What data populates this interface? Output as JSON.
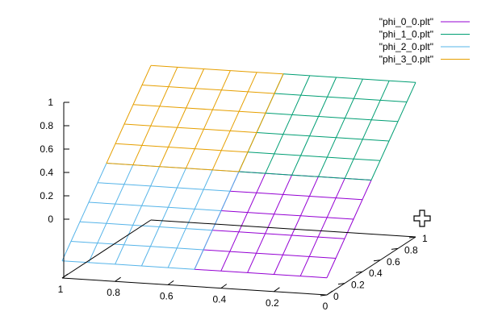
{
  "chart_data": {
    "type": "surface",
    "series": [
      {
        "name": "\"phi_0_0.plt\"",
        "color": "#9400d3",
        "x_range": [
          0,
          0.5
        ],
        "y_range": [
          0,
          0.5
        ],
        "grid": 5
      },
      {
        "name": "\"phi_1_0.plt\"",
        "color": "#009e73",
        "x_range": [
          0,
          0.5
        ],
        "y_range": [
          0.5,
          1
        ],
        "grid": 5
      },
      {
        "name": "\"phi_2_0.plt\"",
        "color": "#56b4e9",
        "x_range": [
          0.5,
          1
        ],
        "y_range": [
          0,
          0.5
        ],
        "grid": 5
      },
      {
        "name": "\"phi_3_0.plt\"",
        "color": "#e69f00",
        "x_range": [
          0.5,
          1
        ],
        "y_range": [
          0.5,
          1
        ],
        "grid": 5
      }
    ],
    "surface_z_corners": {
      "x0y0": 0.1,
      "x1y0": 0.1,
      "x0y1": 0.9,
      "x1y1": 0.9
    },
    "x_ticks": [
      "1",
      "0.8",
      "0.6",
      "0.4",
      "0.2",
      "0"
    ],
    "y_ticks": [
      "0",
      "0.2",
      "0.4",
      "0.6",
      "0.8",
      "1"
    ],
    "z_ticks": [
      "0",
      "0.2",
      "0.4",
      "0.6",
      "0.8",
      "1"
    ],
    "xlim": [
      0,
      1
    ],
    "ylim": [
      0,
      1
    ],
    "zlim": [
      0,
      1
    ],
    "legend_position": "top-right",
    "grid": false
  },
  "icons": {
    "cursor": "crosshair-cursor-icon"
  }
}
